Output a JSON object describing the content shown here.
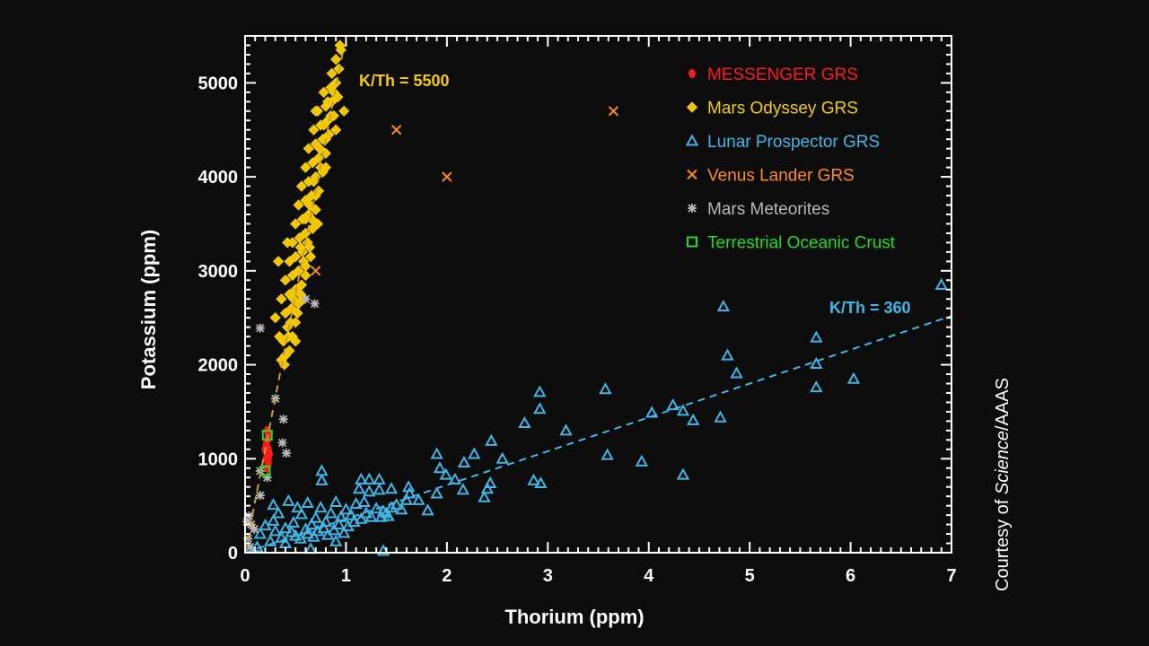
{
  "chart_data": {
    "type": "scatter",
    "xlabel": "Thorium (ppm)",
    "ylabel": "Potassium (ppm)",
    "xlim": [
      0,
      7
    ],
    "ylim": [
      0,
      5500
    ],
    "xticks": [
      "0",
      "1",
      "2",
      "3",
      "4",
      "5",
      "6",
      "7"
    ],
    "yticks": [
      "0",
      "1000",
      "2000",
      "3000",
      "4000",
      "5000"
    ],
    "grid": false,
    "legend_position": "top-right",
    "credit": {
      "prefix": "Courtesy of ",
      "italic": "Science",
      "suffix": "/AAAS"
    },
    "annotations": [
      {
        "text": "K/Th = 5500",
        "color": "#f5cc00"
      },
      {
        "text": "K/Th = 360",
        "color": "#3db8e8"
      }
    ],
    "fit_lines": [
      {
        "ratio": 5500,
        "th_range": [
          0,
          0.98
        ],
        "color": "#c8a030"
      },
      {
        "ratio": 360,
        "th_range": [
          0,
          7
        ],
        "color": "#3db8e8"
      }
    ],
    "series": [
      {
        "name": "MESSENGER GRS",
        "marker": "filled-circle",
        "color": "#ff1a1a",
        "points": [
          [
            0.22,
            900
          ],
          [
            0.23,
            950
          ],
          [
            0.21,
            1000
          ],
          [
            0.22,
            1050
          ],
          [
            0.23,
            1100
          ],
          [
            0.21,
            1150
          ],
          [
            0.22,
            1200
          ],
          [
            0.23,
            1250
          ],
          [
            0.22,
            1300
          ],
          [
            0.24,
            1050
          ],
          [
            0.2,
            1100
          ],
          [
            0.23,
            1000
          ]
        ]
      },
      {
        "name": "Mars Odyssey GRS",
        "marker": "diamond",
        "color": "#f5cc00",
        "points": [
          [
            0.36,
            2050
          ],
          [
            0.4,
            2100
          ],
          [
            0.44,
            2150
          ],
          [
            0.38,
            2250
          ],
          [
            0.47,
            2300
          ],
          [
            0.42,
            2400
          ],
          [
            0.5,
            2450
          ],
          [
            0.4,
            2550
          ],
          [
            0.46,
            2600
          ],
          [
            0.53,
            2650
          ],
          [
            0.36,
            2700
          ],
          [
            0.44,
            2750
          ],
          [
            0.5,
            2800
          ],
          [
            0.56,
            2850
          ],
          [
            0.4,
            2900
          ],
          [
            0.47,
            2950
          ],
          [
            0.53,
            3000
          ],
          [
            0.6,
            3050
          ],
          [
            0.44,
            3100
          ],
          [
            0.5,
            3150
          ],
          [
            0.57,
            3200
          ],
          [
            0.64,
            3250
          ],
          [
            0.47,
            3300
          ],
          [
            0.54,
            3350
          ],
          [
            0.6,
            3400
          ],
          [
            0.67,
            3450
          ],
          [
            0.5,
            3500
          ],
          [
            0.57,
            3550
          ],
          [
            0.63,
            3600
          ],
          [
            0.7,
            3650
          ],
          [
            0.53,
            3700
          ],
          [
            0.6,
            3750
          ],
          [
            0.66,
            3800
          ],
          [
            0.73,
            3850
          ],
          [
            0.56,
            3900
          ],
          [
            0.63,
            3950
          ],
          [
            0.7,
            4000
          ],
          [
            0.77,
            4050
          ],
          [
            0.6,
            4100
          ],
          [
            0.67,
            4150
          ],
          [
            0.73,
            4200
          ],
          [
            0.8,
            4250
          ],
          [
            0.63,
            4300
          ],
          [
            0.7,
            4350
          ],
          [
            0.77,
            4400
          ],
          [
            0.83,
            4450
          ],
          [
            0.68,
            4500
          ],
          [
            0.75,
            4550
          ],
          [
            0.82,
            4600
          ],
          [
            0.88,
            4650
          ],
          [
            0.72,
            4700
          ],
          [
            0.8,
            4750
          ],
          [
            0.86,
            4800
          ],
          [
            0.92,
            4850
          ],
          [
            0.78,
            4900
          ],
          [
            0.85,
            4950
          ],
          [
            0.9,
            5000
          ],
          [
            0.86,
            5100
          ],
          [
            0.93,
            5150
          ],
          [
            0.9,
            5250
          ],
          [
            0.95,
            5350
          ],
          [
            0.94,
            5400
          ],
          [
            0.45,
            2450
          ],
          [
            0.52,
            2550
          ],
          [
            0.55,
            2750
          ],
          [
            0.6,
            2950
          ],
          [
            0.48,
            2700
          ],
          [
            0.58,
            3100
          ],
          [
            0.62,
            3300
          ],
          [
            0.55,
            3250
          ],
          [
            0.66,
            3550
          ],
          [
            0.6,
            3550
          ],
          [
            0.7,
            3800
          ],
          [
            0.64,
            3700
          ],
          [
            0.75,
            4100
          ],
          [
            0.68,
            3950
          ],
          [
            0.8,
            4400
          ],
          [
            0.74,
            4300
          ],
          [
            0.85,
            4650
          ],
          [
            0.78,
            4550
          ],
          [
            0.88,
            4900
          ],
          [
            0.82,
            4800
          ],
          [
            0.5,
            2250
          ],
          [
            0.43,
            2300
          ],
          [
            0.39,
            2000
          ],
          [
            0.65,
            3150
          ],
          [
            0.72,
            3500
          ],
          [
            0.3,
            2500
          ],
          [
            0.33,
            3100
          ],
          [
            0.42,
            3300
          ],
          [
            0.7,
            4700
          ],
          [
            0.98,
            4700
          ],
          [
            0.34,
            2300
          ],
          [
            0.58,
            2700
          ],
          [
            0.8,
            4100
          ],
          [
            0.9,
            4500
          ]
        ]
      },
      {
        "name": "Lunar Prospector GRS",
        "marker": "triangle",
        "color": "#3db8e8",
        "points": [
          [
            6.9,
            2850
          ],
          [
            4.74,
            2620
          ],
          [
            4.78,
            2100
          ],
          [
            4.87,
            1910
          ],
          [
            5.66,
            2290
          ],
          [
            5.66,
            2010
          ],
          [
            5.66,
            1760
          ],
          [
            6.03,
            1850
          ],
          [
            4.71,
            1440
          ],
          [
            3.57,
            1740
          ],
          [
            4.03,
            1490
          ],
          [
            4.24,
            1570
          ],
          [
            4.34,
            1510
          ],
          [
            4.44,
            1410
          ],
          [
            3.59,
            1040
          ],
          [
            3.93,
            970
          ],
          [
            4.34,
            830
          ],
          [
            2.92,
            1710
          ],
          [
            2.92,
            1530
          ],
          [
            2.77,
            1380
          ],
          [
            3.18,
            1300
          ],
          [
            2.44,
            1190
          ],
          [
            2.55,
            1000
          ],
          [
            1.9,
            1050
          ],
          [
            2.27,
            1050
          ],
          [
            2.17,
            960
          ],
          [
            1.93,
            900
          ],
          [
            1.99,
            830
          ],
          [
            2.08,
            780
          ],
          [
            2.86,
            770
          ],
          [
            2.93,
            740
          ],
          [
            2.43,
            740
          ],
          [
            2.4,
            680
          ],
          [
            2.16,
            670
          ],
          [
            2.37,
            590
          ],
          [
            1.9,
            630
          ],
          [
            1.81,
            450
          ],
          [
            1.72,
            560
          ],
          [
            1.63,
            630
          ],
          [
            1.62,
            700
          ],
          [
            1.45,
            680
          ],
          [
            1.33,
            670
          ],
          [
            1.37,
            440
          ],
          [
            1.37,
            20
          ],
          [
            0.76,
            870
          ],
          [
            0.76,
            770
          ],
          [
            1.15,
            780
          ],
          [
            1.23,
            780
          ],
          [
            1.13,
            680
          ],
          [
            1.23,
            650
          ],
          [
            1.33,
            780
          ],
          [
            1.6,
            560
          ],
          [
            1.55,
            460
          ],
          [
            1.5,
            510
          ],
          [
            1.45,
            480
          ],
          [
            1.4,
            420
          ],
          [
            1.3,
            470
          ],
          [
            1.2,
            420
          ],
          [
            1.1,
            520
          ],
          [
            1.05,
            400
          ],
          [
            1.0,
            460
          ],
          [
            0.95,
            380
          ],
          [
            0.9,
            540
          ],
          [
            0.85,
            420
          ],
          [
            0.8,
            330
          ],
          [
            0.75,
            480
          ],
          [
            0.7,
            370
          ],
          [
            0.66,
            300
          ],
          [
            0.62,
            530
          ],
          [
            0.6,
            250
          ],
          [
            0.56,
            410
          ],
          [
            0.52,
            480
          ],
          [
            0.48,
            320
          ],
          [
            0.46,
            220
          ],
          [
            0.43,
            550
          ],
          [
            0.4,
            260
          ],
          [
            0.36,
            160
          ],
          [
            0.33,
            420
          ],
          [
            0.3,
            230
          ],
          [
            0.28,
            510
          ],
          [
            0.28,
            340
          ],
          [
            0.25,
            120
          ],
          [
            0.2,
            290
          ],
          [
            0.15,
            200
          ],
          [
            0.12,
            60
          ],
          [
            0.5,
            180
          ],
          [
            0.55,
            150
          ],
          [
            0.62,
            200
          ],
          [
            0.68,
            170
          ],
          [
            0.72,
            230
          ],
          [
            0.78,
            260
          ],
          [
            0.82,
            190
          ],
          [
            0.88,
            240
          ],
          [
            0.93,
            300
          ],
          [
            0.98,
            210
          ],
          [
            1.02,
            280
          ],
          [
            1.08,
            330
          ],
          [
            1.15,
            360
          ],
          [
            1.25,
            380
          ],
          [
            1.35,
            380
          ],
          [
            1.42,
            390
          ],
          [
            1.18,
            540
          ],
          [
            0.9,
            120
          ],
          [
            0.65,
            40
          ],
          [
            0.4,
            100
          ]
        ]
      },
      {
        "name": "Venus Lander GRS",
        "marker": "x",
        "color": "#ff8c1a",
        "points": [
          [
            1.5,
            4500
          ],
          [
            2.0,
            4000
          ],
          [
            3.65,
            4700
          ],
          [
            0.7,
            3000
          ]
        ]
      },
      {
        "name": "Mars Meteorites",
        "marker": "asterisk",
        "color": "#b8b8b8",
        "points": [
          [
            0.15,
            2390
          ],
          [
            0.3,
            1640
          ],
          [
            0.38,
            1420
          ],
          [
            0.37,
            1170
          ],
          [
            0.41,
            1060
          ],
          [
            0.15,
            610
          ],
          [
            0.15,
            870
          ],
          [
            0.22,
            800
          ],
          [
            0.6,
            2700
          ],
          [
            0.69,
            2650
          ],
          [
            0.04,
            390
          ],
          [
            0.06,
            300
          ],
          [
            0.03,
            150
          ],
          [
            0.09,
            250
          ],
          [
            0.05,
            60
          ],
          [
            0.02,
            330
          ]
        ]
      },
      {
        "name": "Terrestrial Oceanic Crust",
        "marker": "square",
        "color": "#22dd22",
        "points": [
          [
            0.22,
            1250
          ],
          [
            0.2,
            870
          ]
        ]
      }
    ]
  }
}
